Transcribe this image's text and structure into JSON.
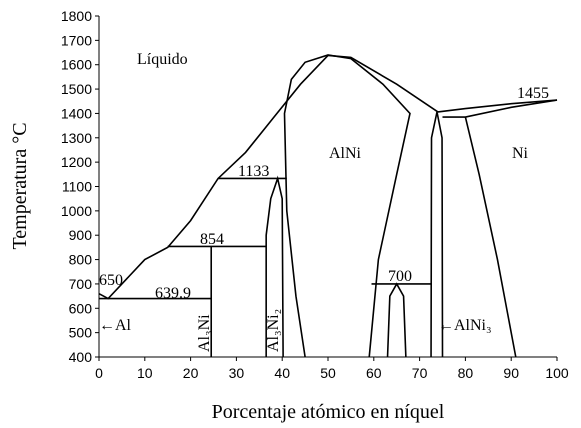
{
  "chart_data": {
    "type": "line",
    "xlabel": "Porcentaje atómico en níquel",
    "ylabel": "Temperatura °C",
    "xlim": [
      0,
      100
    ],
    "xticks": [
      0,
      10,
      20,
      30,
      40,
      50,
      60,
      70,
      80,
      90,
      100
    ],
    "ylim": [
      400,
      1800
    ],
    "yticks": [
      400,
      500,
      600,
      700,
      800,
      900,
      1000,
      1100,
      1200,
      1300,
      1400,
      1500,
      1600,
      1700,
      1800
    ],
    "grid": false,
    "color": "#000000",
    "series": [
      {
        "x": [
          0,
          2,
          5,
          10,
          15,
          20,
          26,
          32,
          38,
          44,
          50
        ],
        "values": [
          660,
          640,
          700,
          800,
          850,
          960,
          1133,
          1240,
          1380,
          1520,
          1638
        ]
      },
      {
        "x": [
          50,
          55,
          65,
          74
        ],
        "values": [
          1638,
          1630,
          1520,
          1406
        ]
      },
      {
        "x": [
          45,
          43,
          41,
          40.5,
          42,
          45,
          50,
          55,
          62,
          67.9,
          65,
          61,
          59
        ],
        "values": [
          400,
          650,
          1000,
          1400,
          1540,
          1610,
          1640,
          1625,
          1520,
          1400,
          1150,
          800,
          400
        ]
      },
      {
        "x": [
          74,
          80,
          90,
          100
        ],
        "values": [
          1406,
          1420,
          1440,
          1455
        ]
      },
      {
        "x": [
          75,
          80,
          90,
          100
        ],
        "values": [
          1385,
          1385,
          1425,
          1455
        ]
      },
      {
        "x": [
          80,
          83,
          87,
          91
        ],
        "values": [
          1385,
          1150,
          800,
          400
        ]
      },
      {
        "x": [
          72.5,
          72.6,
          73.8,
          74.9,
          75
        ],
        "values": [
          400,
          1300,
          1406,
          1300,
          400
        ]
      },
      {
        "x": [
          36.5,
          36.5,
          37.5,
          39,
          40,
          40.2
        ],
        "values": [
          400,
          900,
          1050,
          1133,
          1050,
          400
        ]
      },
      {
        "x": [
          24.5,
          24.5
        ],
        "values": [
          854,
          400
        ]
      },
      {
        "x": [
          26,
          41
        ],
        "values": [
          1133,
          1133
        ]
      },
      {
        "x": [
          15,
          36.5
        ],
        "values": [
          854,
          854
        ]
      },
      {
        "x": [
          0,
          24.5
        ],
        "values": [
          639.9,
          639.9
        ]
      },
      {
        "x": [
          59.5,
          72.6
        ],
        "values": [
          700,
          700
        ]
      },
      {
        "x": [
          63,
          63.5,
          65,
          66.5,
          67
        ],
        "values": [
          400,
          650,
          700,
          650,
          400
        ]
      }
    ],
    "annotations": [
      "Líquido",
      "AlNi",
      "Ni",
      "1133",
      "854",
      "700",
      "650",
      "639.9",
      "1455",
      "←Al",
      "←AlNi₃",
      "Al₃Ni",
      "Al₃Ni₂"
    ]
  }
}
